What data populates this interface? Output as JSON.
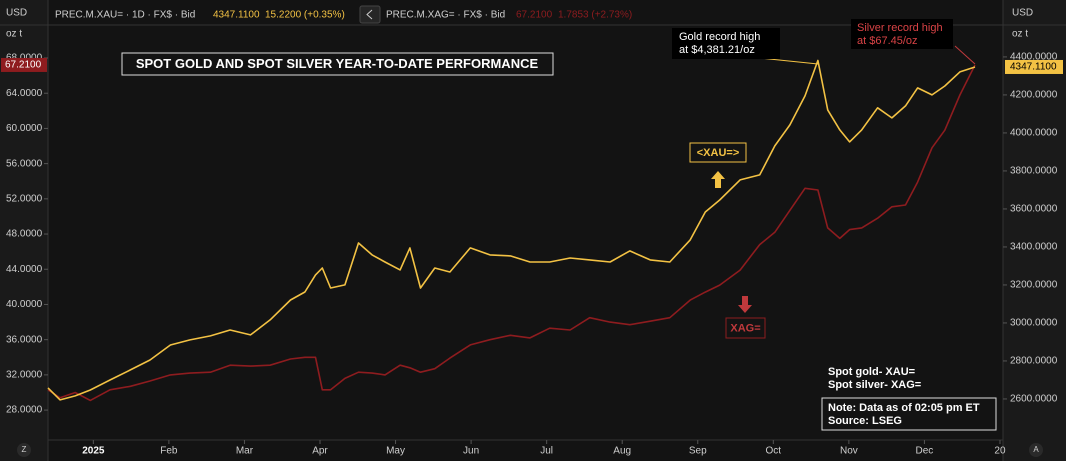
{
  "header": {
    "left_unit": "USD",
    "left_sub": "oz t",
    "xau_symbol": "PREC.M.XAU= · 1D · FX$ · Bid",
    "xau_price": "4347.1100",
    "xau_change": "15.2200 (+0.35%)",
    "xag_symbol": "PREC.M.XAG= · FX$ · Bid",
    "xag_price": "67.2100",
    "xag_change": "1.7853 (+2.73%)",
    "right_unit": "USD",
    "right_sub": "oz t"
  },
  "corner_buttons": [
    "Z",
    "A"
  ],
  "chart_data": {
    "type": "line",
    "title": "SPOT GOLD AND SPOT SILVER YEAR-TO-DATE PERFORMANCE",
    "x": [
      -0.6,
      -0.44,
      -0.24,
      -0.04,
      0.22,
      0.49,
      0.75,
      1.02,
      1.28,
      1.55,
      1.81,
      2.08,
      2.34,
      2.61,
      2.8,
      2.94,
      3.03,
      3.14,
      3.33,
      3.51,
      3.69,
      3.86,
      4.06,
      4.19,
      4.33,
      4.52,
      4.72,
      4.99,
      5.25,
      5.52,
      5.78,
      6.04,
      6.31,
      6.57,
      6.84,
      7.1,
      7.37,
      7.63,
      7.9,
      8.1,
      8.29,
      8.56,
      8.82,
      9.02,
      9.22,
      9.42,
      9.59,
      9.72,
      9.88,
      10.01,
      10.17,
      10.38,
      10.57,
      10.75,
      10.91,
      11.1,
      11.27,
      11.47,
      11.67
    ],
    "xlim": [
      -0.6,
      12.04
    ],
    "xticks": [
      {
        "value": 0,
        "label": "2025"
      },
      {
        "value": 1,
        "label": "Feb"
      },
      {
        "value": 2,
        "label": "Mar"
      },
      {
        "value": 3,
        "label": "Apr"
      },
      {
        "value": 4,
        "label": "May"
      },
      {
        "value": 5,
        "label": "Jun"
      },
      {
        "value": 6,
        "label": "Jul"
      },
      {
        "value": 7,
        "label": "Aug"
      },
      {
        "value": 8,
        "label": "Sep"
      },
      {
        "value": 9,
        "label": "Oct"
      },
      {
        "value": 10,
        "label": "Nov"
      },
      {
        "value": 11,
        "label": "Dec"
      },
      {
        "value": 12,
        "label": "20"
      }
    ],
    "ylim": [
      24.6,
      71.75
    ],
    "yticks": [
      {
        "value": 28,
        "label": "28.0000"
      },
      {
        "value": 32,
        "label": "32.0000"
      },
      {
        "value": 36,
        "label": "36.0000"
      },
      {
        "value": 40,
        "label": "40.0000"
      },
      {
        "value": 44,
        "label": "44.0000"
      },
      {
        "value": 48,
        "label": "48.0000"
      },
      {
        "value": 52,
        "label": "52.0000"
      },
      {
        "value": 56,
        "label": "56.0000"
      },
      {
        "value": 60,
        "label": "60.0000"
      },
      {
        "value": 64,
        "label": "64.0000"
      },
      {
        "value": 68,
        "label": "68.0000"
      }
    ],
    "y2lim": [
      2384,
      4568
    ],
    "y2ticks": [
      {
        "value": 2600,
        "label": "2600.0000"
      },
      {
        "value": 2800,
        "label": "2800.0000"
      },
      {
        "value": 3000,
        "label": "3000.0000"
      },
      {
        "value": 3200,
        "label": "3200.0000"
      },
      {
        "value": 3400,
        "label": "3400.0000"
      },
      {
        "value": 3600,
        "label": "3600.0000"
      },
      {
        "value": 3800,
        "label": "3800.0000"
      },
      {
        "value": 4000,
        "label": "4000.0000"
      },
      {
        "value": 4200,
        "label": "4200.0000"
      },
      {
        "value": 4400,
        "label": "4400.0000"
      }
    ],
    "grid": false,
    "series": [
      {
        "name": "Spot gold- XAU=",
        "color": "#f3c244",
        "axis": "y2",
        "values": [
          2658,
          2595,
          2616,
          2647,
          2700,
          2753,
          2805,
          2884,
          2911,
          2932,
          2963,
          2937,
          3016,
          3121,
          3163,
          3253,
          3289,
          3184,
          3200,
          3421,
          3358,
          3321,
          3279,
          3395,
          3184,
          3289,
          3268,
          3395,
          3358,
          3353,
          3321,
          3321,
          3342,
          3332,
          3321,
          3379,
          3332,
          3321,
          3437,
          3584,
          3647,
          3753,
          3779,
          3932,
          4042,
          4195,
          4381,
          4121,
          4016,
          3953,
          4016,
          4132,
          4079,
          4142,
          4237,
          4200,
          4247,
          4321,
          4347
        ]
      },
      {
        "name": "Spot silver- XAG=",
        "color": "#8e1c1f",
        "axis": "y",
        "values": [
          30.3,
          29.4,
          30.0,
          29.1,
          30.3,
          30.7,
          31.3,
          32.0,
          32.2,
          32.3,
          33.1,
          33.0,
          33.1,
          33.8,
          34.0,
          34.0,
          30.3,
          30.3,
          31.6,
          32.3,
          32.2,
          32.0,
          33.1,
          32.8,
          32.3,
          32.7,
          33.9,
          35.4,
          36.0,
          36.5,
          36.2,
          37.3,
          37.1,
          38.5,
          38.0,
          37.7,
          38.1,
          38.5,
          40.5,
          41.4,
          42.2,
          43.9,
          46.8,
          48.2,
          50.7,
          53.2,
          53.0,
          48.7,
          47.5,
          48.5,
          48.7,
          49.8,
          51.1,
          51.3,
          53.9,
          57.8,
          59.8,
          63.8,
          67.2
        ]
      }
    ],
    "price_tags": [
      {
        "value": 67.21,
        "label": "67.2100",
        "axis": "y",
        "color": "#8e1c1f"
      },
      {
        "value": 4347.11,
        "label": "4347.1100",
        "axis": "y2",
        "color": "#f3c244"
      }
    ],
    "annotations": {
      "gold_record": [
        "Gold record high",
        "at $4,381.21/oz"
      ],
      "silver_record": [
        "Silver record high",
        "at $67.45/oz"
      ],
      "xau_tag": "<XAU=>",
      "xag_tag": "XAG=",
      "note": "Note: Data as of 02:05 pm ET",
      "source": "Source: LSEG"
    }
  }
}
